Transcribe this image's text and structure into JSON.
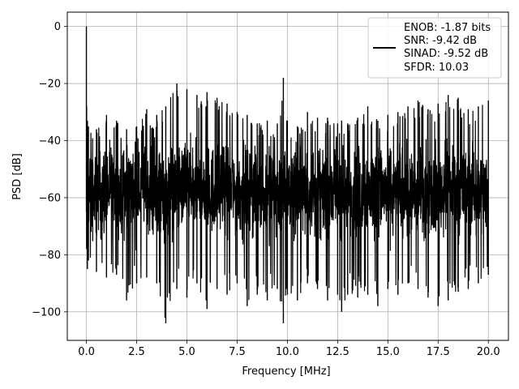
{
  "chart_data": {
    "type": "line",
    "xlabel": "Frequency [MHz]",
    "ylabel": "PSD [dB]",
    "xlim": [
      -0.95,
      21.0
    ],
    "ylim": [
      -110,
      5
    ],
    "x_ticks": [
      0.0,
      2.5,
      5.0,
      7.5,
      10.0,
      12.5,
      15.0,
      17.5,
      20.0
    ],
    "x_tick_labels": [
      "0.0",
      "2.5",
      "5.0",
      "7.5",
      "10.0",
      "12.5",
      "15.0",
      "17.5",
      "20.0"
    ],
    "y_ticks": [
      0,
      -20,
      -40,
      -60,
      -80,
      -100
    ],
    "y_tick_labels": [
      "0",
      "−20",
      "−40",
      "−60",
      "−80",
      "−100"
    ],
    "grid": true,
    "legend_position": "top-right",
    "legend": [
      "ENOB: -1.87 bits",
      "SNR: -9.42 dB",
      "SINAD: -9.52 dB",
      "SFDR: 10.03"
    ],
    "series": [
      {
        "color": "#000000",
        "description": "dense noise-floor PSD from 0 to 20 MHz, mostly between -35 and -80 dB, peak at 0 dB near DC",
        "x": [
          0.0,
          0.01,
          0.05,
          0.1,
          0.5,
          1.0,
          1.5,
          2.0,
          2.5,
          3.0,
          3.5,
          3.95,
          4.5,
          5.0,
          5.5,
          6.0,
          6.5,
          7.0,
          7.5,
          8.0,
          8.5,
          9.0,
          9.5,
          9.8,
          10.0,
          10.5,
          11.0,
          11.5,
          12.0,
          12.5,
          12.7,
          13.0,
          13.5,
          14.0,
          14.5,
          15.0,
          15.5,
          16.0,
          16.5,
          17.0,
          17.5,
          18.0,
          18.5,
          19.0,
          19.5,
          20.0
        ],
        "y_upper": [
          0,
          -28,
          -33,
          -35,
          -36,
          -31,
          -33,
          -36,
          -35,
          -29,
          -31,
          -28,
          -20,
          -22,
          -24,
          -23,
          -25,
          -27,
          -30,
          -31,
          -34,
          -33,
          -34,
          -18,
          -33,
          -35,
          -30,
          -32,
          -32,
          -34,
          -33,
          -34,
          -32,
          -28,
          -33,
          -31,
          -30,
          -28,
          -26,
          -29,
          -27,
          -24,
          -25,
          -29,
          -28,
          -26
        ],
        "y_lower": [
          -65,
          -78,
          -85,
          -82,
          -86,
          -88,
          -87,
          -96,
          -90,
          -88,
          -90,
          -104,
          -92,
          -95,
          -90,
          -99,
          -92,
          -94,
          -90,
          -98,
          -94,
          -96,
          -92,
          -104,
          -94,
          -96,
          -90,
          -92,
          -96,
          -94,
          -100,
          -94,
          -95,
          -94,
          -98,
          -92,
          -94,
          -90,
          -92,
          -95,
          -98,
          -96,
          -93,
          -92,
          -90,
          -87
        ],
        "y_center": [
          -55,
          -57,
          -58,
          -58,
          -58,
          -57,
          -58,
          -58,
          -58,
          -57,
          -58,
          -58,
          -57,
          -56,
          -57,
          -57,
          -57,
          -57,
          -58,
          -58,
          -58,
          -58,
          -58,
          -58,
          -58,
          -58,
          -58,
          -58,
          -58,
          -58,
          -58,
          -58,
          -58,
          -58,
          -58,
          -58,
          -58,
          -58,
          -58,
          -58,
          -58,
          -57,
          -57,
          -58,
          -58,
          -58
        ]
      }
    ]
  }
}
